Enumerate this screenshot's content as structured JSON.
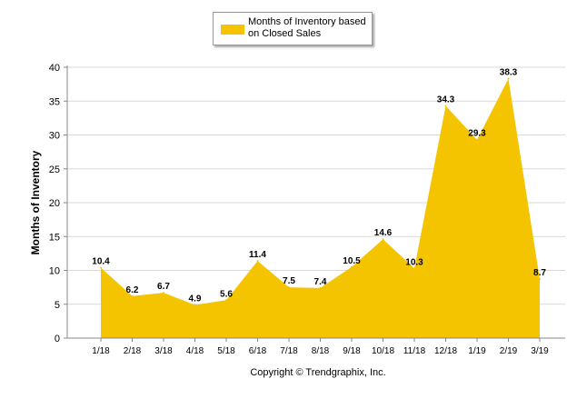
{
  "chart_data": {
    "type": "area",
    "categories": [
      "1/18",
      "2/18",
      "3/18",
      "4/18",
      "5/18",
      "6/18",
      "7/18",
      "8/18",
      "9/18",
      "10/18",
      "11/18",
      "12/18",
      "1/19",
      "2/19",
      "3/19"
    ],
    "series": [
      {
        "name": "Months of Inventory based on Closed Sales",
        "values": [
          10.4,
          6.2,
          6.7,
          4.9,
          5.6,
          11.4,
          7.5,
          7.4,
          10.5,
          14.6,
          10.3,
          34.3,
          29.3,
          38.3,
          8.7
        ],
        "labels": [
          "10.4",
          "6.2",
          "6.7",
          "4.9",
          "5.6",
          "11.4",
          "7.5",
          "7.4",
          "10.5",
          "14.6",
          "10.3",
          "34.3",
          "29.3",
          "38.3",
          "8.7"
        ],
        "color": "#F5C400"
      }
    ],
    "title": "",
    "xlabel": "",
    "ylabel": "Months of Inventory",
    "ylim": [
      0,
      40
    ],
    "yticks": [
      "0",
      "5",
      "10",
      "15",
      "20",
      "25",
      "30",
      "35",
      "40"
    ],
    "grid": true,
    "legend_position": "top-center",
    "footer": "Copyright © Trendgraphix, Inc."
  }
}
